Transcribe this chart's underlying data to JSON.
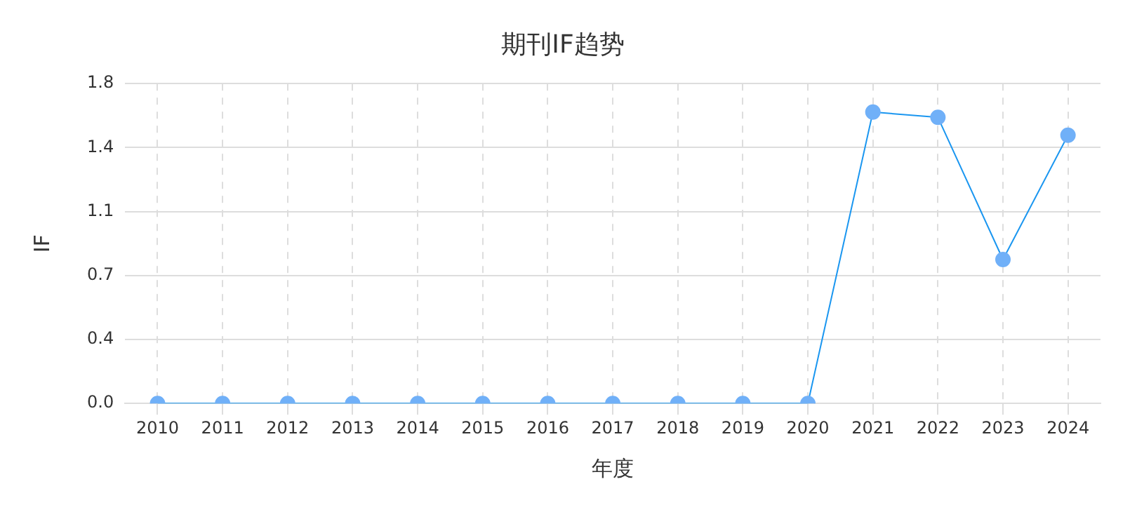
{
  "chart_data": {
    "type": "line",
    "title": "期刊IF趋势",
    "xlabel": "年度",
    "ylabel": "IF",
    "categories": [
      "2010",
      "2011",
      "2012",
      "2013",
      "2014",
      "2015",
      "2016",
      "2017",
      "2018",
      "2019",
      "2020",
      "2021",
      "2022",
      "2023",
      "2024"
    ],
    "series": [
      {
        "color": "#1a96f0",
        "values": [
          0,
          0,
          0,
          0,
          0,
          0,
          0,
          0,
          0,
          0,
          0,
          1.64,
          1.61,
          0.81,
          1.51
        ]
      }
    ],
    "ylim": [
      0,
      1.8
    ],
    "yticks": [
      {
        "value": 0,
        "label": "0.0"
      },
      {
        "value": 0.36,
        "label": "0.4"
      },
      {
        "value": 0.72,
        "label": "0.7"
      },
      {
        "value": 1.08,
        "label": "1.1"
      },
      {
        "value": 1.44,
        "label": "1.4"
      },
      {
        "value": 1.8,
        "label": "1.8"
      }
    ],
    "grid": true,
    "legend": false,
    "marker": "circle",
    "line_style": "solid"
  }
}
